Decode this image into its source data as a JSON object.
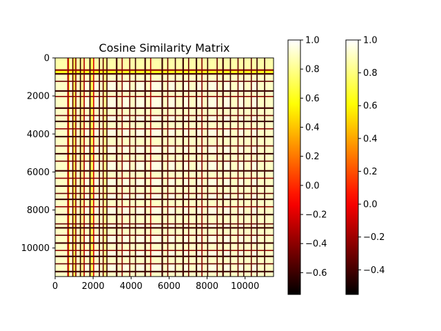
{
  "chart_data": {
    "type": "heatmap",
    "title": "Cosine Similarity Matrix",
    "xlabel": "",
    "ylabel": "",
    "matrix_size": 11500,
    "xlim": [
      0,
      11500
    ],
    "ylim": [
      11500,
      0
    ],
    "x_ticks": [
      0,
      2000,
      4000,
      6000,
      8000,
      10000
    ],
    "y_ticks": [
      0,
      2000,
      4000,
      6000,
      8000,
      10000
    ],
    "x_tick_labels": [
      "0",
      "2000",
      "4000",
      "6000",
      "8000",
      "10000"
    ],
    "y_tick_labels": [
      "0",
      "2000",
      "4000",
      "6000",
      "8000",
      "10000"
    ],
    "colormap": "hot",
    "grid": false,
    "colorbars": [
      {
        "vmin": -0.75,
        "vmax": 1.0,
        "ticks": [
          -0.6,
          -0.4,
          -0.2,
          0.0,
          0.2,
          0.4,
          0.6,
          0.8,
          1.0
        ],
        "tick_labels": [
          "−0.6",
          "−0.4",
          "−0.2",
          "0.0",
          "0.2",
          "0.4",
          "0.6",
          "0.8",
          "1.0"
        ]
      },
      {
        "vmin": -0.55,
        "vmax": 1.0,
        "ticks": [
          -0.4,
          -0.2,
          0.0,
          0.2,
          0.4,
          0.6,
          0.8,
          1.0
        ],
        "tick_labels": [
          "−0.4",
          "−0.2",
          "0.0",
          "0.2",
          "0.4",
          "0.6",
          "0.8",
          "1.0"
        ]
      }
    ],
    "bands": {
      "x": [
        [
          0,
          640,
          0.9
        ],
        [
          640,
          720,
          -0.3
        ],
        [
          720,
          760,
          0.6
        ],
        [
          760,
          900,
          0.95
        ],
        [
          900,
          960,
          -0.5
        ],
        [
          960,
          1060,
          0.7
        ],
        [
          1060,
          1120,
          -0.4
        ],
        [
          1120,
          1300,
          0.9
        ],
        [
          1300,
          1360,
          -0.6
        ],
        [
          1360,
          1500,
          0.8
        ],
        [
          1500,
          1560,
          -0.3
        ],
        [
          1560,
          1800,
          0.95
        ],
        [
          1800,
          1870,
          -0.6
        ],
        [
          1870,
          2000,
          0.7
        ],
        [
          2000,
          2060,
          -0.2
        ],
        [
          2060,
          2300,
          0.95
        ],
        [
          2300,
          2360,
          -0.6
        ],
        [
          2360,
          2500,
          0.9
        ],
        [
          2500,
          2560,
          -0.5
        ],
        [
          2560,
          2700,
          0.8
        ],
        [
          2700,
          2760,
          -0.6
        ],
        [
          2760,
          3200,
          0.95
        ],
        [
          3200,
          3280,
          -0.6
        ],
        [
          3280,
          3500,
          0.9
        ],
        [
          3500,
          3560,
          -0.4
        ],
        [
          3560,
          3900,
          0.95
        ],
        [
          3900,
          3960,
          -0.5
        ],
        [
          3960,
          4200,
          0.9
        ],
        [
          4200,
          4260,
          -0.6
        ],
        [
          4260,
          4700,
          0.95
        ],
        [
          4700,
          4780,
          -0.6
        ],
        [
          4780,
          5000,
          0.9
        ],
        [
          5000,
          5060,
          -0.3
        ],
        [
          5060,
          5600,
          0.95
        ],
        [
          5600,
          5680,
          -0.6
        ],
        [
          5680,
          5900,
          0.9
        ],
        [
          5900,
          5960,
          -0.5
        ],
        [
          5960,
          6300,
          0.95
        ],
        [
          6300,
          6360,
          -0.6
        ],
        [
          6360,
          6700,
          0.9
        ],
        [
          6700,
          6780,
          -0.6
        ],
        [
          6780,
          7000,
          0.95
        ],
        [
          7000,
          7060,
          -0.5
        ],
        [
          7060,
          7400,
          0.9
        ],
        [
          7400,
          7480,
          -0.6
        ],
        [
          7480,
          7700,
          0.95
        ],
        [
          7700,
          7760,
          -0.4
        ],
        [
          7760,
          8000,
          0.9
        ],
        [
          8000,
          8060,
          -0.6
        ],
        [
          8060,
          8500,
          0.95
        ],
        [
          8500,
          8560,
          -0.5
        ],
        [
          8560,
          8800,
          0.9
        ],
        [
          8800,
          8880,
          -0.6
        ],
        [
          8880,
          9200,
          0.95
        ],
        [
          9200,
          9260,
          -0.6
        ],
        [
          9260,
          9600,
          0.9
        ],
        [
          9600,
          9660,
          -0.5
        ],
        [
          9660,
          9900,
          0.95
        ],
        [
          9900,
          9960,
          -0.6
        ],
        [
          9960,
          10300,
          0.9
        ],
        [
          10300,
          10360,
          -0.5
        ],
        [
          10360,
          10600,
          0.95
        ],
        [
          10600,
          10660,
          -0.6
        ],
        [
          10660,
          11000,
          0.9
        ],
        [
          11000,
          11060,
          -0.6
        ],
        [
          11060,
          11500,
          0.9
        ]
      ],
      "y": [
        [
          0,
          600,
          0.85
        ],
        [
          600,
          680,
          -0.4
        ],
        [
          680,
          800,
          0.6
        ],
        [
          800,
          880,
          -0.6
        ],
        [
          880,
          1200,
          0.9
        ],
        [
          1200,
          1260,
          -0.5
        ],
        [
          1260,
          1700,
          0.95
        ],
        [
          1700,
          1780,
          -0.6
        ],
        [
          1780,
          2000,
          0.9
        ],
        [
          2000,
          2060,
          -0.4
        ],
        [
          2060,
          2600,
          0.95
        ],
        [
          2600,
          2680,
          -0.6
        ],
        [
          2680,
          3000,
          0.9
        ],
        [
          3000,
          3060,
          -0.5
        ],
        [
          3060,
          3300,
          0.95
        ],
        [
          3300,
          3380,
          -0.6
        ],
        [
          3380,
          3700,
          0.9
        ],
        [
          3700,
          3760,
          -0.4
        ],
        [
          3760,
          4100,
          0.95
        ],
        [
          4100,
          4180,
          -0.6
        ],
        [
          4180,
          4600,
          0.9
        ],
        [
          4600,
          4660,
          -0.5
        ],
        [
          4660,
          5000,
          0.95
        ],
        [
          5000,
          5080,
          -0.6
        ],
        [
          5080,
          5400,
          0.9
        ],
        [
          5400,
          5460,
          -0.5
        ],
        [
          5460,
          5900,
          0.95
        ],
        [
          5900,
          5980,
          -0.6
        ],
        [
          5980,
          6300,
          0.9
        ],
        [
          6300,
          6360,
          -0.4
        ],
        [
          6360,
          6700,
          0.95
        ],
        [
          6700,
          6780,
          -0.6
        ],
        [
          6780,
          7100,
          0.9
        ],
        [
          7100,
          7160,
          -0.5
        ],
        [
          7160,
          7400,
          0.95
        ],
        [
          7400,
          7480,
          -0.6
        ],
        [
          7480,
          7800,
          0.9
        ],
        [
          7800,
          7860,
          -0.4
        ],
        [
          7860,
          8200,
          0.95
        ],
        [
          8200,
          8280,
          -0.6
        ],
        [
          8280,
          8700,
          0.9
        ],
        [
          8700,
          8760,
          -0.5
        ],
        [
          8760,
          8900,
          0.95
        ],
        [
          8900,
          8980,
          -0.6
        ],
        [
          8980,
          9300,
          0.9
        ],
        [
          9300,
          9360,
          -0.5
        ],
        [
          9360,
          9700,
          0.95
        ],
        [
          9700,
          9780,
          -0.6
        ],
        [
          9780,
          10100,
          0.9
        ],
        [
          10100,
          10160,
          -0.4
        ],
        [
          10160,
          10400,
          0.95
        ],
        [
          10400,
          10480,
          -0.6
        ],
        [
          10480,
          10800,
          0.9
        ],
        [
          10800,
          10860,
          -0.5
        ],
        [
          10860,
          11200,
          0.95
        ],
        [
          11200,
          11280,
          -0.6
        ],
        [
          11280,
          11500,
          0.9
        ]
      ]
    }
  }
}
